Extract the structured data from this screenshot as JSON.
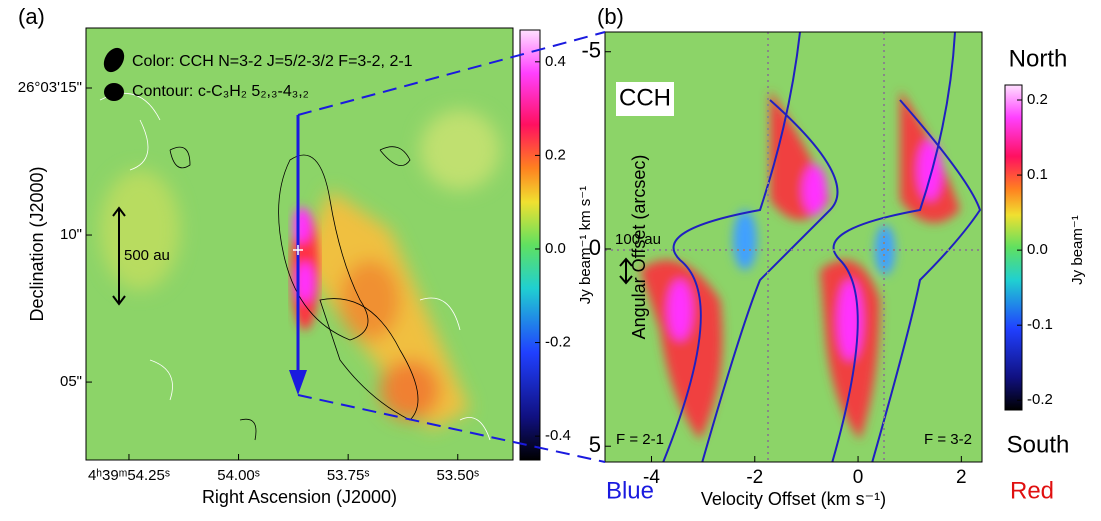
{
  "chart_data": [
    {
      "type": "heatmap",
      "panel": "(a)",
      "legend": [
        "Color: CCH N=3-2 J=5/2-3/2 F=3-2, 2-1",
        "Contour: c-C₃H₂ 5₂,₃-4₃,₂"
      ],
      "annotations": [
        "500 au"
      ],
      "xlabel": "Right Ascension (J2000)",
      "ylabel": "Declination (J2000)",
      "xlim": [
        54.348,
        53.374
      ],
      "xticks": [
        {
          "value": 54.25,
          "label": "4ʰ39ᵐ54.25ˢ"
        },
        {
          "value": 54.0,
          "label": "54.00ˢ"
        },
        {
          "value": 53.75,
          "label": "53.75ˢ"
        },
        {
          "value": 53.5,
          "label": "53.50ˢ"
        }
      ],
      "ylim": [
        2.35,
        17.04
      ],
      "yticks": [
        {
          "value": 15,
          "label": "26°03'15\""
        },
        {
          "value": 10,
          "label": "10\""
        },
        {
          "value": 5,
          "label": "05\""
        }
      ],
      "colorbar": {
        "label": "Jy beam⁻¹ km s⁻¹",
        "lim": [
          -0.451,
          0.468
        ],
        "ticks": [
          0.4,
          0.2,
          {
            "value": 0,
            "label": "0.0"
          },
          -0.2,
          -0.4
        ]
      }
    },
    {
      "type": "heatmap",
      "panel": "(b)",
      "annotations": [
        "CCH",
        "100 au",
        "North",
        "South",
        "Blue",
        "Red",
        "F = 2-1",
        "F = 3-2"
      ],
      "xlabel": "Velocity Offset (km s⁻¹)",
      "ylabel": "Angular Offset (arcsec)",
      "xlim": [
        -4.9,
        2.4
      ],
      "xticks": [
        -4,
        -2,
        0,
        2
      ],
      "ylim": [
        5.4,
        -5.5
      ],
      "yticks": [
        -5,
        0,
        5
      ],
      "colorbar": {
        "label": "Jy beam⁻¹",
        "lim": [
          -0.213,
          0.22
        ],
        "ticks": [
          0.2,
          0.1,
          {
            "value": 0,
            "label": "0.0"
          },
          -0.1,
          -0.2
        ]
      }
    }
  ]
}
